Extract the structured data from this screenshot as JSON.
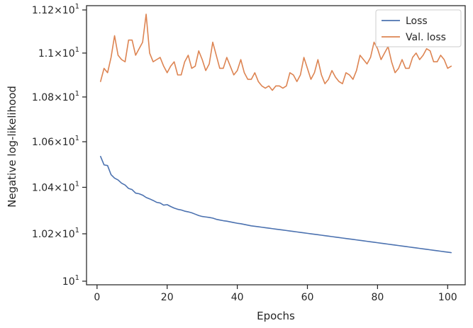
{
  "chart_data": {
    "type": "line",
    "xlabel": "Epochs",
    "ylabel": "Negative log-likelihood",
    "xlim": [
      -3,
      105
    ],
    "ylim": [
      9.985,
      11.22
    ],
    "yscale": "log",
    "grid": false,
    "legend_position": "top-right",
    "x_ticks": [
      {
        "value": 0,
        "label": "0"
      },
      {
        "value": 20,
        "label": "20"
      },
      {
        "value": 40,
        "label": "40"
      },
      {
        "value": 60,
        "label": "60"
      },
      {
        "value": 80,
        "label": "80"
      },
      {
        "value": 100,
        "label": "100"
      }
    ],
    "y_ticks": [
      {
        "value": 10.0,
        "mantissa": "",
        "exp": "1"
      },
      {
        "value": 10.2,
        "mantissa": "1.02",
        "exp": "1"
      },
      {
        "value": 10.4,
        "mantissa": "1.04",
        "exp": "1"
      },
      {
        "value": 10.6,
        "mantissa": "1.06",
        "exp": "1"
      },
      {
        "value": 10.8,
        "mantissa": "1.08",
        "exp": "1"
      },
      {
        "value": 11.0,
        "mantissa": "1.1",
        "exp": "1"
      },
      {
        "value": 11.2,
        "mantissa": "1.12",
        "exp": "1"
      }
    ],
    "x": [
      1,
      2,
      3,
      4,
      5,
      6,
      7,
      8,
      9,
      10,
      11,
      12,
      13,
      14,
      15,
      16,
      17,
      18,
      19,
      20,
      21,
      22,
      23,
      24,
      25,
      26,
      27,
      28,
      29,
      30,
      31,
      32,
      33,
      34,
      35,
      36,
      37,
      38,
      39,
      40,
      41,
      42,
      43,
      44,
      45,
      46,
      47,
      48,
      49,
      50,
      51,
      52,
      53,
      54,
      55,
      56,
      57,
      58,
      59,
      60,
      61,
      62,
      63,
      64,
      65,
      66,
      67,
      68,
      69,
      70,
      71,
      72,
      73,
      74,
      75,
      76,
      77,
      78,
      79,
      80,
      81,
      82,
      83,
      84,
      85,
      86,
      87,
      88,
      89,
      90,
      91,
      92,
      93,
      94,
      95,
      96,
      97,
      98,
      99,
      100,
      101
    ],
    "series": [
      {
        "name": "Loss",
        "color": "#4c72b0",
        "values": [
          10.535,
          10.498,
          10.495,
          10.455,
          10.44,
          10.432,
          10.418,
          10.41,
          10.395,
          10.39,
          10.375,
          10.372,
          10.366,
          10.356,
          10.35,
          10.343,
          10.335,
          10.332,
          10.323,
          10.325,
          10.317,
          10.31,
          10.305,
          10.302,
          10.297,
          10.294,
          10.29,
          10.284,
          10.278,
          10.274,
          10.272,
          10.27,
          10.267,
          10.262,
          10.259,
          10.256,
          10.254,
          10.251,
          10.248,
          10.245,
          10.243,
          10.24,
          10.237,
          10.234,
          10.232,
          10.23,
          10.228,
          10.226,
          10.224,
          10.222,
          10.22,
          10.218,
          10.216,
          10.214,
          10.212,
          10.21,
          10.208,
          10.206,
          10.204,
          10.202,
          10.2,
          10.198,
          10.196,
          10.194,
          10.192,
          10.19,
          10.188,
          10.186,
          10.184,
          10.182,
          10.18,
          10.178,
          10.176,
          10.174,
          10.172,
          10.17,
          10.168,
          10.166,
          10.164,
          10.162,
          10.16,
          10.158,
          10.156,
          10.154,
          10.152,
          10.15,
          10.148,
          10.146,
          10.144,
          10.142,
          10.14,
          10.138,
          10.136,
          10.134,
          10.132,
          10.13,
          10.128,
          10.126,
          10.124,
          10.122,
          10.12
        ]
      },
      {
        "name": "Val. loss",
        "color": "#dd8452",
        "values": [
          10.87,
          10.93,
          10.91,
          10.98,
          11.08,
          10.99,
          10.97,
          10.96,
          11.06,
          11.06,
          10.99,
          11.02,
          11.05,
          11.18,
          11.0,
          10.96,
          10.97,
          10.98,
          10.94,
          10.91,
          10.94,
          10.96,
          10.9,
          10.9,
          10.96,
          10.99,
          10.93,
          10.94,
          11.01,
          10.97,
          10.92,
          10.95,
          11.05,
          10.99,
          10.93,
          10.93,
          10.98,
          10.94,
          10.9,
          10.92,
          10.97,
          10.91,
          10.88,
          10.88,
          10.91,
          10.87,
          10.85,
          10.84,
          10.85,
          10.83,
          10.85,
          10.85,
          10.84,
          10.85,
          10.91,
          10.9,
          10.87,
          10.9,
          10.98,
          10.93,
          10.88,
          10.91,
          10.97,
          10.9,
          10.86,
          10.88,
          10.92,
          10.89,
          10.87,
          10.86,
          10.91,
          10.9,
          10.88,
          10.92,
          10.99,
          10.97,
          10.95,
          10.98,
          11.05,
          11.02,
          10.97,
          11.0,
          11.03,
          10.96,
          10.91,
          10.93,
          10.97,
          10.93,
          10.93,
          10.98,
          11.0,
          10.97,
          10.99,
          11.02,
          11.01,
          10.96,
          10.96,
          10.99,
          10.97,
          10.93,
          10.94
        ]
      }
    ]
  }
}
